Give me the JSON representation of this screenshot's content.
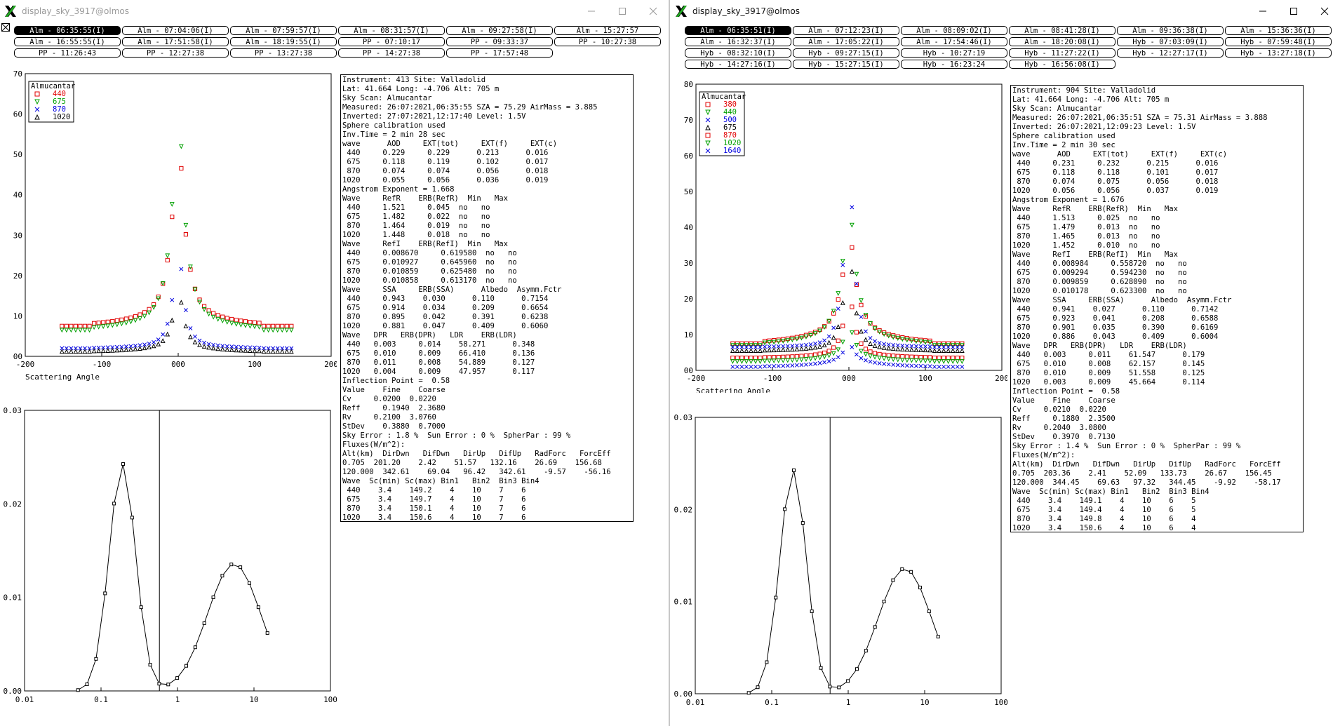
{
  "windows": [
    {
      "title": "display_sky_3917@olmos",
      "active": false,
      "tabs": [
        [
          "Alm - 06:35:55(I)",
          "Alm - 07:04:06(I)",
          "Alm - 07:59:57(I)",
          "Alm - 08:31:57(I)",
          "Alm - 09:27:58(I)",
          "Alm - 15:27:57"
        ],
        [
          "Alm - 16:55:55(I)",
          "Alm - 17:51:58(I)",
          "Alm - 18:19:55(I)",
          "PP - 07:10:17",
          "PP - 09:33:37",
          "PP - 10:27:38"
        ],
        [
          "PP - 11:26:43",
          "PP - 12:27:38",
          "PP - 13:27:38",
          "PP - 14:27:38",
          "PP - 17:57:48"
        ]
      ],
      "selected_tab": "Alm - 06:35:55(I)",
      "scatter_plot": {
        "legend_title": "Almucantar",
        "legend": [
          {
            "label": "440",
            "color": "#e00000",
            "marker": "square"
          },
          {
            "label": "675",
            "color": "#00a000",
            "marker": "tri-down"
          },
          {
            "label": "870",
            "color": "#0000e0",
            "marker": "x"
          },
          {
            "label": "1020",
            "color": "#000000",
            "marker": "tri-up"
          }
        ],
        "xlabel": "Scattering Angle",
        "xticks": [
          "-200",
          "-100",
          "000",
          "100",
          "200"
        ],
        "yticks": [
          "00",
          "10",
          "20",
          "30",
          "40",
          "50",
          "60",
          "70"
        ],
        "xlim": [
          -200,
          200
        ],
        "ylim": [
          0,
          70
        ]
      },
      "dist_plot": {
        "yticks": [
          "0.00",
          "0.01",
          "0.02",
          "0.03"
        ],
        "xticks": [
          "0.01",
          "0.1",
          "1",
          "10",
          "100"
        ],
        "ylim": [
          0,
          0.03
        ],
        "inflection_point": 0.58
      },
      "info_lines": [
        "Instrument: 413 Site: Valladolid",
        "Lat: 41.664 Long: -4.706 Alt: 705 m",
        "Sky Scan: Almucantar",
        "Measured: 26:07:2021,06:35:55 SZA = 75.29 AirMass = 3.885",
        "Inverted: 27:07:2021,12:17:40 Level: 1.5V",
        "Sphere calibration used",
        "Inv.Time = 2 min 28 sec",
        "wave      AOD     EXT(tot)     EXT(f)     EXT(c)",
        " 440     0.229     0.229      0.213      0.016",
        " 675     0.118     0.119      0.102      0.017",
        " 870     0.074     0.074      0.056      0.018",
        "1020     0.055     0.056      0.036      0.019",
        "Angstrom Exponent = 1.668",
        "Wave     RefR    ERB(RefR)  Min   Max",
        " 440     1.521     0.045  no   no",
        " 675     1.482     0.022  no   no",
        " 870     1.464     0.019  no   no",
        "1020     1.448     0.018  no   no",
        "Wave     RefI    ERB(RefI)  Min   Max",
        " 440     0.008670     0.619580  no   no",
        " 675     0.010927     0.645960  no   no",
        " 870     0.010859     0.625480  no   no",
        "1020     0.010858     0.613170  no   no",
        "Wave     SSA     ERB(SSA)      Albedo  Asymm.Fctr",
        " 440     0.943    0.030      0.110      0.7154",
        " 675     0.914    0.034      0.209      0.6654",
        " 870     0.895    0.042      0.391      0.6238",
        "1020     0.881    0.047      0.409      0.6060",
        "Wave   DPR   ERB(DPR)   LDR    ERB(LDR)",
        " 440   0.003     0.014    58.271      0.348",
        " 675   0.010     0.009    66.410      0.136",
        " 870   0.011     0.008    54.889      0.127",
        "1020   0.004     0.009    47.957      0.117",
        "Inflection Point =  0.58",
        "Value    Fine    Coarse",
        "Cv     0.0200  0.0220",
        "Reff     0.1940  2.3680",
        "Rv     0.2100  3.0760",
        "StDev    0.3880  0.7000",
        "Sky Error : 1.8 %  Sun Error : 0 %  SpherPar : 99 %",
        "Fluxes(W/m^2):",
        "Alt(km)  DirDwn   DifDwn   DirUp   DifUp   RadForc   ForcEff",
        "0.705  201.20    2.42    51.57   132.16    26.69    156.68",
        "120.000  342.61    69.04   96.42   342.61    -9.57    -56.16",
        "Wave  Sc(min) Sc(max) Bin1   Bin2  Bin3 Bin4",
        " 440    3.4    149.2    4    10    7    6",
        " 675    3.4    149.7    4    10    7    6",
        " 870    3.4    150.1    4    10    7    6",
        "1020    3.4    150.6    4    10    7    6"
      ]
    },
    {
      "title": "display_sky_3917@olmos",
      "active": true,
      "tabs": [
        [
          "Alm - 06:35:51(I)",
          "Alm - 07:12:23(I)",
          "Alm - 08:09:02(I)",
          "Alm - 08:41:28(I)",
          "Alm - 09:36:38(I)",
          "Alm - 15:36:36(I)"
        ],
        [
          "Alm - 16:32:37(I)",
          "Alm - 17:05:22(I)",
          "Alm - 17:54:46(I)",
          "Alm - 18:20:08(I)",
          "Hyb - 07:03:09(I)",
          "Hyb - 07:59:48(I)"
        ],
        [
          "Hyb - 08:32:10(I)",
          "Hyb - 09:27:15(I)",
          "Hyb - 10:27:19",
          "Hyb - 11:27:22(I)",
          "Hyb - 12:27:17(I)",
          "Hyb - 13:27:18(I)"
        ],
        [
          "Hyb - 14:27:16(I)",
          "Hyb - 15:27:15(I)",
          "Hyb - 16:23:24",
          "Hyb - 16:56:08(I)"
        ]
      ],
      "selected_tab": "Alm - 06:35:51(I)",
      "scatter_plot": {
        "legend_title": "Almucantar",
        "legend": [
          {
            "label": "380",
            "color": "#e00000",
            "marker": "square"
          },
          {
            "label": "440",
            "color": "#00a000",
            "marker": "tri-down"
          },
          {
            "label": "500",
            "color": "#0000e0",
            "marker": "x"
          },
          {
            "label": "675",
            "color": "#000000",
            "marker": "tri-up"
          },
          {
            "label": "870",
            "color": "#e00000",
            "marker": "square"
          },
          {
            "label": "1020",
            "color": "#00a000",
            "marker": "tri-down"
          },
          {
            "label": "1640",
            "color": "#0000e0",
            "marker": "x"
          }
        ],
        "xlabel": "Scattering Angle",
        "xticks": [
          "-200",
          "-100",
          "000",
          "100",
          "200"
        ],
        "yticks": [
          "00",
          "10",
          "20",
          "30",
          "40",
          "50",
          "60",
          "70",
          "80"
        ],
        "xlim": [
          -200,
          200
        ],
        "ylim": [
          0,
          80
        ]
      },
      "dist_plot": {
        "yticks": [
          "0.00",
          "0.01",
          "0.02",
          "0.03"
        ],
        "xticks": [
          "0.01",
          "0.1",
          "1",
          "10",
          "100"
        ],
        "ylim": [
          0,
          0.03
        ],
        "inflection_point": 0.58
      },
      "info_lines": [
        "Instrument: 904 Site: Valladolid",
        "Lat: 41.664 Long: -4.706 Alt: 705 m",
        "Sky Scan: Almucantar",
        "Measured: 26:07:2021,06:35:51 SZA = 75.31 AirMass = 3.888",
        "Inverted: 26:07:2021,12:09:23 Level: 1.5V",
        "Sphere calibration used",
        "Inv.Time = 2 min 30 sec",
        "wave      AOD     EXT(tot)     EXT(f)     EXT(c)",
        " 440     0.231     0.232      0.215      0.016",
        " 675     0.118     0.118      0.101      0.017",
        " 870     0.074     0.075      0.056      0.018",
        "1020     0.056     0.056      0.037      0.019",
        "Angstrom Exponent = 1.676",
        "Wave     RefR    ERB(RefR)  Min   Max",
        " 440     1.513     0.025  no   no",
        " 675     1.479     0.013  no   no",
        " 870     1.465     0.013  no   no",
        "1020     1.452     0.010  no   no",
        "Wave     RefI    ERB(RefI)  Min   Max",
        " 440     0.008984     0.558720  no   no",
        " 675     0.009294     0.594230  no   no",
        " 870     0.009859     0.628090  no   no",
        "1020     0.010178     0.623300  no   no",
        "Wave     SSA     ERB(SSA)      Albedo  Asymm.Fctr",
        " 440     0.941    0.027      0.110      0.7142",
        " 675     0.923    0.041      0.208      0.6588",
        " 870     0.901    0.035      0.390      0.6169",
        "1020     0.886    0.043      0.409      0.6004",
        "Wave   DPR   ERB(DPR)   LDR    ERB(LDR)",
        " 440   0.003     0.011    61.547      0.179",
        " 675   0.010     0.008    62.157      0.145",
        " 870   0.010     0.009    51.558      0.125",
        "1020   0.003     0.009    45.664      0.114",
        "Inflection Point =  0.58",
        "Value    Fine    Coarse",
        "Cv     0.0210  0.0220",
        "Reff     0.1880  2.3500",
        "Rv     0.2040  3.0800",
        "StDev    0.3970  0.7130",
        "Sky Error : 1.4 %  Sun Error : 0 %  SpherPar : 99 %",
        "Fluxes(W/m^2):",
        "Alt(km)  DirDwn   DifDwn   DirUp   DifUp   RadForc   ForcEff",
        "0.705  203.36    2.41    52.09   133.73    26.67    156.45",
        "120.000  344.45    69.63   97.32   344.45    -9.92    -58.17",
        "Wave  Sc(min) Sc(max) Bin1   Bin2  Bin3 Bin4",
        " 440    3.4    149.1    4    10    6    5",
        " 675    3.4    149.4    4    10    6    5",
        " 870    3.4    149.8    4    10    6    4",
        "1020    3.4    150.6    4    10    6    4"
      ]
    }
  ]
}
